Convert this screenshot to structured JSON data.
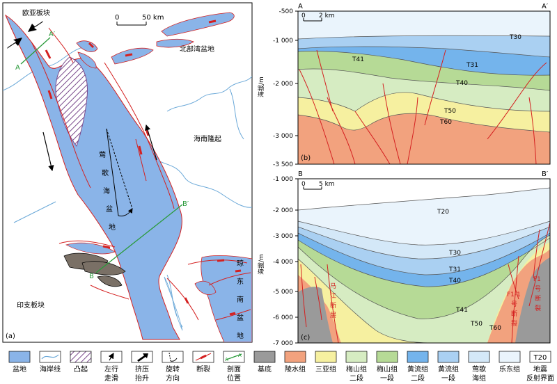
{
  "map": {
    "panel_label": "(a)",
    "eurasian_plate": "欧亚板块",
    "indochina_plate": "印支板块",
    "beibu_gulf_basin": "北部湾盆地",
    "hainan_uplift": "海南隆起",
    "yinggehai_basin_chars": [
      "莺",
      "歌",
      "海",
      "盆",
      "地"
    ],
    "qiongdongnan_chars": [
      "琼",
      "东",
      "南",
      "盆",
      "地"
    ],
    "scale_zero": "0",
    "scale_end": "50 km",
    "profile_a": "A",
    "profile_a_prime": "A′",
    "profile_b": "B",
    "profile_b_prime": "B′"
  },
  "section_b": {
    "panel_label": "(b)",
    "left_end": "A",
    "right_end": "A′",
    "y_axis_title": "海拔/m",
    "y_ticks": [
      "-500",
      "-1 000",
      "-2 000",
      "-3 000",
      "-3 500"
    ],
    "scale_zero": "0",
    "scale_end": "2 km",
    "reflectors": [
      "T30",
      "T31",
      "T40",
      "T41",
      "T50",
      "T60"
    ]
  },
  "section_c": {
    "panel_label": "(c)",
    "left_end": "B",
    "right_end": "B′",
    "y_axis_title": "海拔/m",
    "y_ticks": [
      "-1 000",
      "-2 000",
      "-3 000",
      "-4 000",
      "-5 000",
      "-6 000",
      "-7 000"
    ],
    "scale_zero": "0",
    "scale_end": "5 km",
    "reflectors": [
      "T20",
      "T30",
      "T31",
      "T40",
      "T41",
      "T50",
      "T60"
    ],
    "majiang_fault_chars": [
      "马",
      "江",
      "断",
      "层"
    ],
    "f11_fault": [
      "F1-1",
      "号",
      "断",
      "裂"
    ],
    "f1_fault": [
      "F1",
      "号",
      "断",
      "裂"
    ]
  },
  "legend": {
    "items": [
      {
        "line1": "盆地",
        "line2": "",
        "color": "#8ab4e8"
      },
      {
        "line1": "海岸线",
        "line2": "",
        "color": "#6aa8d8"
      },
      {
        "line1": "凸起",
        "line2": "",
        "color": "#7a4a8c"
      },
      {
        "line1": "左行",
        "line2": "走滑",
        "color": "#000000"
      },
      {
        "line1": "挤压",
        "line2": "抬升",
        "color": "#000000"
      },
      {
        "line1": "旋转",
        "line2": "方向",
        "color": "#000000"
      },
      {
        "line1": "断裂",
        "line2": "",
        "color": "#d42020"
      },
      {
        "line1": "剖面",
        "line2": "位置",
        "color": "#2a9a3a"
      },
      {
        "line1": "基底",
        "line2": "",
        "color": "#9a9a9a"
      },
      {
        "line1": "陵水组",
        "line2": "",
        "color": "#f2a27e"
      },
      {
        "line1": "三亚组",
        "line2": "",
        "color": "#f6f0a0"
      },
      {
        "line1": "梅山组",
        "line2": "二段",
        "color": "#d6ecc2"
      },
      {
        "line1": "梅山组",
        "line2": "一段",
        "color": "#b6da96"
      },
      {
        "line1": "黄流组",
        "line2": "二段",
        "color": "#74b4ec"
      },
      {
        "line1": "黄流组",
        "line2": "一段",
        "color": "#aad0f2"
      },
      {
        "line1": "莺歌",
        "line2": "海组",
        "color": "#d4e8f8"
      },
      {
        "line1": "乐东组",
        "line2": "",
        "color": "#eaf4fc"
      },
      {
        "line1": "地震",
        "line2": "反射界面",
        "swatch_text": "T20"
      }
    ]
  },
  "colors": {
    "basin": "#8ab4e8",
    "fault": "#d42020",
    "profile": "#2a9a3a",
    "basement": "#9a9a9a",
    "lingshui": "#f2a27e",
    "sanya": "#f6f0a0",
    "meishan2": "#d6ecc2",
    "meishan1": "#b6da96",
    "huangliu2": "#74b4ec",
    "huangliu1": "#aad0f2",
    "yinggehai": "#d4e8f8",
    "ledong": "#eaf4fc",
    "coast": "#6aa8d8"
  }
}
